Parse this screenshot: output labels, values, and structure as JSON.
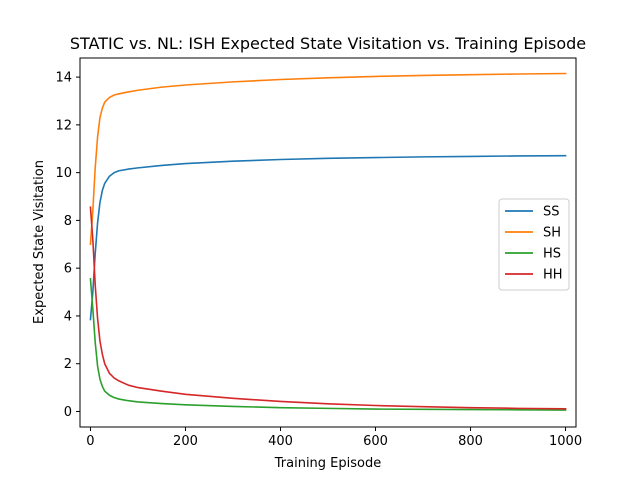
{
  "chart_data": {
    "type": "line",
    "title": "STATIC vs. NL: ISH Expected State Visitation vs. Training Episode",
    "xlabel": "Training Episode",
    "ylabel": "Expected State Visitation",
    "xlim": [
      -22,
      1022
    ],
    "ylim": [
      -0.65,
      14.8
    ],
    "xticks": [
      0,
      200,
      400,
      600,
      800,
      1000
    ],
    "yticks": [
      0,
      2,
      4,
      6,
      8,
      10,
      12,
      14
    ],
    "grid": false,
    "legend_position": "center-right",
    "series": [
      {
        "name": "SS",
        "color": "#1f77b4",
        "x": [
          0,
          5,
          10,
          15,
          20,
          25,
          30,
          40,
          50,
          60,
          80,
          100,
          150,
          200,
          300,
          400,
          500,
          600,
          700,
          800,
          900,
          1000
        ],
        "y": [
          3.85,
          5.0,
          6.6,
          7.9,
          8.75,
          9.25,
          9.55,
          9.85,
          10.0,
          10.08,
          10.15,
          10.2,
          10.3,
          10.38,
          10.48,
          10.55,
          10.6,
          10.63,
          10.66,
          10.68,
          10.7,
          10.71
        ]
      },
      {
        "name": "SH",
        "color": "#ff7f0e",
        "x": [
          0,
          5,
          10,
          15,
          20,
          25,
          30,
          40,
          50,
          60,
          80,
          100,
          150,
          200,
          300,
          400,
          500,
          600,
          700,
          800,
          900,
          1000
        ],
        "y": [
          7.0,
          8.4,
          10.2,
          11.5,
          12.3,
          12.7,
          12.95,
          13.15,
          13.25,
          13.3,
          13.38,
          13.45,
          13.58,
          13.67,
          13.8,
          13.9,
          13.97,
          14.03,
          14.07,
          14.1,
          14.13,
          14.15
        ]
      },
      {
        "name": "HS",
        "color": "#2ca02c",
        "x": [
          0,
          5,
          10,
          15,
          20,
          25,
          30,
          40,
          50,
          60,
          80,
          100,
          150,
          200,
          300,
          400,
          500,
          600,
          700,
          800,
          900,
          1000
        ],
        "y": [
          5.55,
          4.3,
          2.9,
          1.9,
          1.35,
          1.05,
          0.85,
          0.68,
          0.58,
          0.52,
          0.45,
          0.4,
          0.33,
          0.28,
          0.21,
          0.16,
          0.13,
          0.1,
          0.09,
          0.08,
          0.07,
          0.06
        ]
      },
      {
        "name": "HH",
        "color": "#d62728",
        "x": [
          0,
          5,
          10,
          15,
          20,
          25,
          30,
          40,
          50,
          60,
          80,
          100,
          150,
          200,
          300,
          400,
          500,
          600,
          700,
          800,
          900,
          1000
        ],
        "y": [
          8.55,
          7.2,
          5.3,
          3.9,
          2.95,
          2.4,
          2.0,
          1.6,
          1.4,
          1.28,
          1.1,
          1.0,
          0.85,
          0.72,
          0.55,
          0.42,
          0.32,
          0.25,
          0.2,
          0.16,
          0.13,
          0.11
        ]
      }
    ]
  }
}
